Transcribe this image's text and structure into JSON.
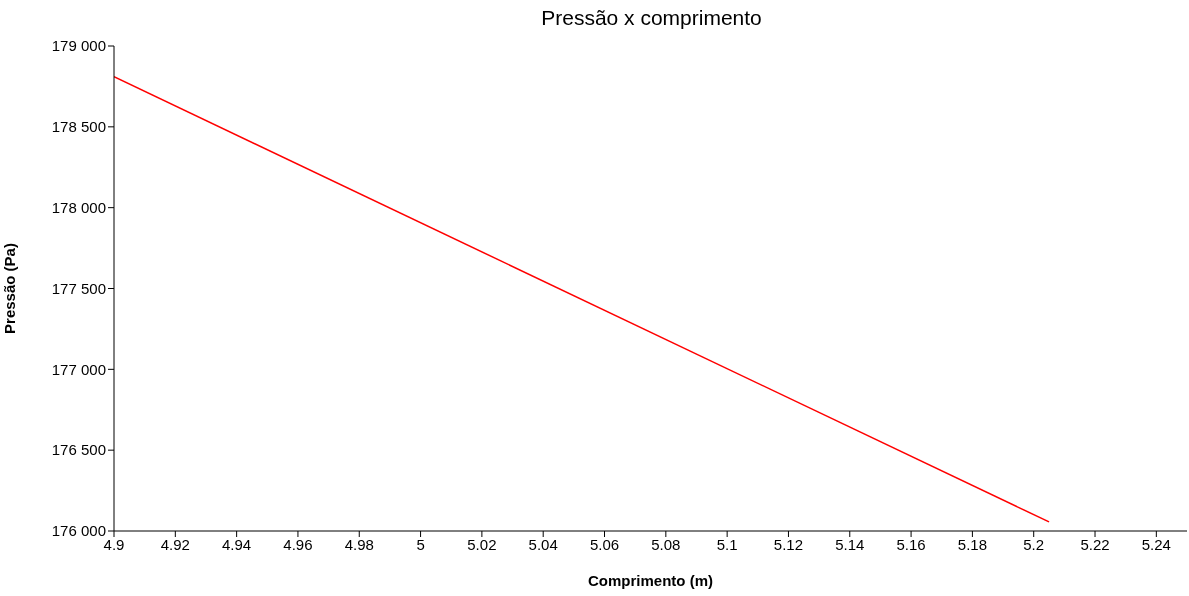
{
  "chart_data": {
    "type": "line",
    "title": "Pressão x comprimento",
    "xlabel": "Comprimento (m)",
    "ylabel": "Pressão (Pa)",
    "x": [
      4.9,
      5.205
    ],
    "series": [
      {
        "color": "#ff0000",
        "values": [
          178810,
          176056
        ]
      }
    ],
    "xlim": [
      4.9,
      5.25
    ],
    "xticks": [
      4.9,
      4.92,
      4.94,
      4.96,
      4.98,
      5,
      5.02,
      5.04,
      5.06,
      5.08,
      5.1,
      5.12,
      5.14,
      5.16,
      5.18,
      5.2,
      5.22,
      5.24
    ],
    "ylim": [
      176000,
      179000
    ],
    "yticks": [
      {
        "value": 176000,
        "label": "176 000"
      },
      {
        "value": 176500,
        "label": "176 500"
      },
      {
        "value": 177000,
        "label": "177 000"
      },
      {
        "value": 177500,
        "label": "177 500"
      },
      {
        "value": 178000,
        "label": "178 000"
      },
      {
        "value": 178500,
        "label": "178 500"
      },
      {
        "value": 179000,
        "label": "179 000"
      }
    ],
    "grid": false,
    "legend": false,
    "marker": "none",
    "line_style": "solid"
  }
}
